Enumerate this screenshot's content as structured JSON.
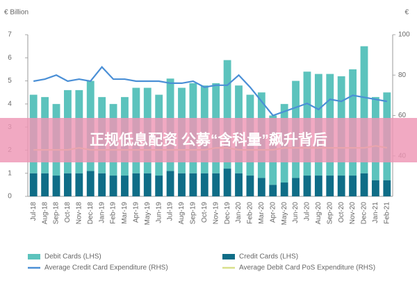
{
  "chart_data": {
    "type": "bar_line",
    "y_label": "€ Billion",
    "y2_label": "€",
    "categories": [
      "Jul-18",
      "Aug-18",
      "Sep-18",
      "Oct-18",
      "Nov-18",
      "Dec-18",
      "Jan-19",
      "Feb-19",
      "Mar-19",
      "Apr-19",
      "May-19",
      "Jun-19",
      "Jul-19",
      "Aug-19",
      "Sep-19",
      "Oct-19",
      "Nov-19",
      "Dec-19",
      "Jan-20",
      "Feb-20",
      "Mar-20",
      "Apr-20",
      "May-20",
      "Jun-20",
      "Jul-20",
      "Aug-20",
      "Sep-20",
      "Oct-20",
      "Nov-20",
      "Dec-20",
      "Jan-21",
      "Feb-21"
    ],
    "series": [
      {
        "name": "Debit Cards (LHS)",
        "type": "bar",
        "color": "#5cc3bd",
        "values": [
          3.4,
          3.3,
          3.1,
          3.6,
          3.6,
          3.9,
          3.3,
          3.1,
          3.4,
          3.7,
          3.7,
          3.5,
          4.0,
          3.7,
          3.9,
          3.8,
          3.9,
          4.7,
          3.8,
          3.5,
          3.7,
          3.0,
          3.4,
          4.2,
          4.5,
          4.4,
          4.4,
          4.3,
          4.6,
          5.5,
          3.6,
          3.8
        ]
      },
      {
        "name": "Credit Cards (LHS)",
        "type": "bar",
        "color": "#0f6d87",
        "values": [
          1.0,
          1.0,
          0.9,
          1.0,
          1.0,
          1.1,
          1.0,
          0.9,
          0.9,
          1.0,
          1.0,
          0.9,
          1.1,
          1.0,
          1.0,
          1.0,
          1.0,
          1.2,
          1.0,
          0.9,
          0.8,
          0.5,
          0.6,
          0.8,
          0.9,
          0.9,
          0.9,
          0.9,
          0.9,
          1.0,
          0.7,
          0.7
        ]
      },
      {
        "name": "Average Credit Card Expenditure (RHS)",
        "type": "line",
        "axis": "y2",
        "color": "#4a8fd6",
        "values": [
          77,
          78,
          80,
          77,
          78,
          77,
          84,
          78,
          78,
          77,
          77,
          77,
          76,
          76,
          77,
          74,
          75,
          75,
          80,
          74,
          67,
          60,
          62,
          64,
          66,
          63,
          68,
          67,
          70,
          69,
          68,
          67
        ]
      },
      {
        "name": "Average Debit Card PoS Expenditure (RHS)",
        "type": "line",
        "axis": "y2",
        "color": "#d8e08a",
        "values": [
          43,
          43,
          43,
          43,
          44,
          43,
          43,
          43,
          43,
          43,
          43,
          43,
          43,
          43,
          43,
          43,
          44,
          44,
          43,
          43,
          43,
          43,
          44,
          44,
          44,
          44,
          44,
          44,
          44,
          44,
          45,
          44
        ]
      }
    ],
    "ylim": [
      0,
      7
    ],
    "yticks": [
      0,
      1,
      2,
      3,
      4,
      5,
      6,
      7
    ],
    "y2lim": [
      20,
      100
    ],
    "y2ticks": [
      40,
      60,
      80,
      100
    ],
    "stacked": true,
    "legend": "bottom"
  },
  "banner": {
    "text": "正规低息配资 公募“含科量”飙升背后"
  }
}
